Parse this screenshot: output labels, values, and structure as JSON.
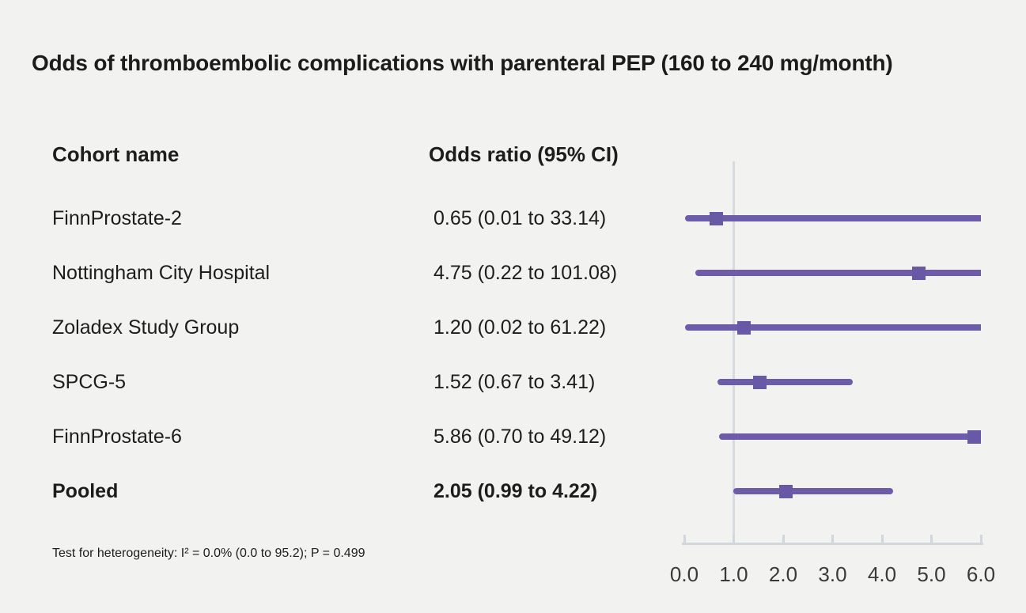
{
  "title": "Odds of thromboembolic complications with parenteral PEP (160 to 240 mg/month)",
  "colors": {
    "background": "#f2f2f1",
    "ci_line": "#6c5caa",
    "marker": "#6859a6",
    "reference_line": "#d6dae1",
    "axis": "#d2d7de",
    "text": "#1d1d1b",
    "tick_label_text": "#3a3a38"
  },
  "chart_data": {
    "type": "forest",
    "title": "Odds of thromboembolic complications with parenteral PEP (160 to 240 mg/month)",
    "columns": [
      "Cohort name",
      "Odds ratio (95% CI)"
    ],
    "xlabel": "",
    "xlim": [
      0,
      6
    ],
    "xticks": [
      0,
      1,
      2,
      3,
      4,
      5,
      6
    ],
    "xtick_labels": [
      "0.0",
      "1.0",
      "2.0",
      "3.0",
      "4.0",
      "5.0",
      "6.0"
    ],
    "reference_line": 1.0,
    "grid": false,
    "legend": "none",
    "rows": [
      {
        "cohort": "FinnProstate-2",
        "or": 0.65,
        "ci_low": 0.01,
        "ci_high": 33.14,
        "label": "0.65 (0.01 to 33.14)",
        "bold": false
      },
      {
        "cohort": "Nottingham City Hospital",
        "or": 4.75,
        "ci_low": 0.22,
        "ci_high": 101.08,
        "label": "4.75 (0.22 to 101.08)",
        "bold": false
      },
      {
        "cohort": "Zoladex Study Group",
        "or": 1.2,
        "ci_low": 0.02,
        "ci_high": 61.22,
        "label": "1.20 (0.02 to 61.22)",
        "bold": false
      },
      {
        "cohort": "SPCG-5",
        "or": 1.52,
        "ci_low": 0.67,
        "ci_high": 3.41,
        "label": "1.52 (0.67 to 3.41)",
        "bold": false
      },
      {
        "cohort": "FinnProstate-6",
        "or": 5.86,
        "ci_low": 0.7,
        "ci_high": 49.12,
        "label": "5.86 (0.70 to 49.12)",
        "bold": false
      },
      {
        "cohort": "Pooled",
        "or": 2.05,
        "ci_low": 0.99,
        "ci_high": 4.22,
        "label": "2.05 (0.99 to 4.22)",
        "bold": true
      }
    ],
    "footnote": "Test for heterogeneity: I² = 0.0% (0.0 to 95.2); P = 0.499"
  }
}
